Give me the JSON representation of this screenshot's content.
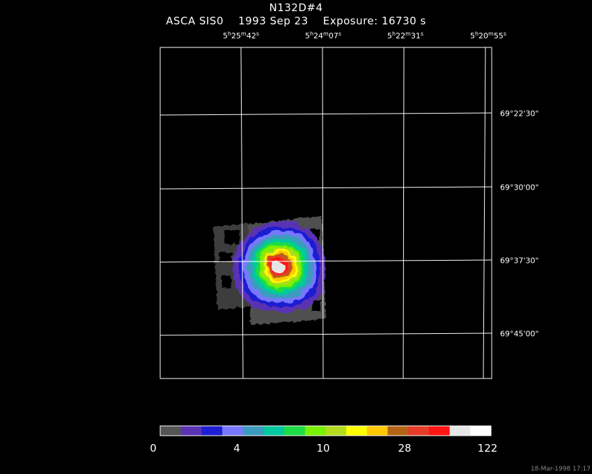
{
  "title": "N132D#4",
  "subtitle": "ASCA SIS0    1993 Sep 23    Exposure: 16730 s",
  "ra_labels": [
    {
      "h": "5",
      "m": "25",
      "s": "42"
    },
    {
      "h": "5",
      "m": "24",
      "s": "07"
    },
    {
      "h": "5",
      "m": "22",
      "s": "31"
    },
    {
      "h": "5",
      "m": "20",
      "s": "55"
    }
  ],
  "dec_labels": [
    "69°22'30\"",
    "69°30'00\"",
    "69°37'30\"",
    "69°45'00\""
  ],
  "colorbar": {
    "colors": [
      "#555555",
      "#5a32b4",
      "#1e1ed2",
      "#7878ff",
      "#3c9bbe",
      "#00c8a0",
      "#1edc46",
      "#78f000",
      "#b4dc1e",
      "#ffff00",
      "#ffc800",
      "#b46414",
      "#e63c28",
      "#ff1414",
      "#e6e6e6",
      "#ffffff"
    ],
    "tick_labels": [
      "0",
      "4",
      "10",
      "28",
      "122"
    ]
  },
  "timestamp": "18-Mar-1998 17:17"
}
